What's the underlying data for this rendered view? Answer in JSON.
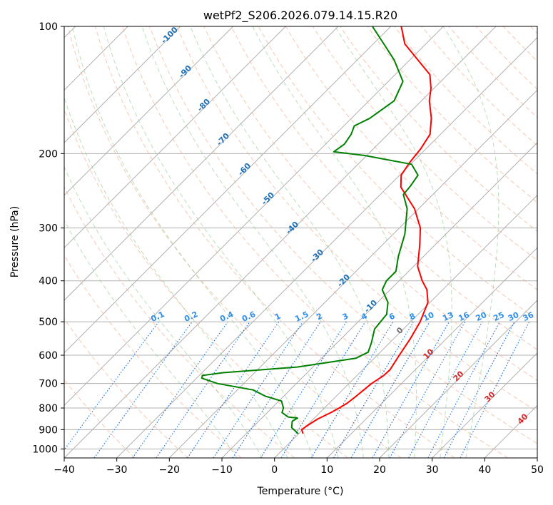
{
  "chart_data": {
    "type": "line",
    "title": "wetPf2_S206.2026.079.14.15.R20",
    "xlabel": "Temperature (°C)",
    "ylabel": "Pressure (hPa)",
    "xlim": [
      -40,
      50
    ],
    "ylim": [
      1050,
      100
    ],
    "y_scale": "log",
    "skew": "skew-T",
    "grid": true,
    "xticks": [
      -40,
      -30,
      -20,
      -10,
      0,
      10,
      20,
      30,
      40,
      50
    ],
    "xtick_labels": [
      "−40",
      "−30",
      "−20",
      "−10",
      "0",
      "10",
      "20",
      "30",
      "40",
      "50"
    ],
    "yticks": [
      1000,
      900,
      800,
      700,
      600,
      500,
      400,
      300,
      200,
      100
    ],
    "ytick_labels": [
      "1000",
      "900",
      "800",
      "700",
      "600",
      "500",
      "400",
      "300",
      "200",
      "100"
    ],
    "series": [
      {
        "color": "#ff0000",
        "points": [
          [
            920,
            0.8
          ],
          [
            900,
            -0.2
          ],
          [
            880,
            0.1
          ],
          [
            850,
            0.8
          ],
          [
            820,
            2.1
          ],
          [
            800,
            2.8
          ],
          [
            780,
            3.4
          ],
          [
            750,
            3.8
          ],
          [
            700,
            4.3
          ],
          [
            670,
            5.1
          ],
          [
            650,
            5.2
          ],
          [
            600,
            4.2
          ],
          [
            550,
            3.2
          ],
          [
            500,
            1.8
          ],
          [
            450,
            -0.4
          ],
          [
            420,
            -3.0
          ],
          [
            400,
            -5.6
          ],
          [
            370,
            -9.2
          ],
          [
            330,
            -12.8
          ],
          [
            300,
            -16.0
          ],
          [
            270,
            -20.8
          ],
          [
            240,
            -27.5
          ],
          [
            225,
            -29.7
          ],
          [
            210,
            -30.5
          ],
          [
            195,
            -31.0
          ],
          [
            180,
            -32.0
          ],
          [
            165,
            -34.8
          ],
          [
            150,
            -38.5
          ],
          [
            140,
            -40.6
          ],
          [
            130,
            -43.4
          ],
          [
            120,
            -48.5
          ],
          [
            110,
            -54.0
          ],
          [
            100,
            -58.0
          ]
        ]
      },
      {
        "color": "#008000",
        "points": [
          [
            920,
            -0.1
          ],
          [
            890,
            -2.5
          ],
          [
            860,
            -3.6
          ],
          [
            845,
            -3.2
          ],
          [
            840,
            -5.2
          ],
          [
            820,
            -7.2
          ],
          [
            800,
            -7.8
          ],
          [
            770,
            -9.5
          ],
          [
            750,
            -13.5
          ],
          [
            725,
            -17.0
          ],
          [
            700,
            -25.0
          ],
          [
            680,
            -29.0
          ],
          [
            670,
            -29.4
          ],
          [
            660,
            -26.0
          ],
          [
            640,
            -13.0
          ],
          [
            610,
            -3.5
          ],
          [
            590,
            -2.3
          ],
          [
            560,
            -3.5
          ],
          [
            520,
            -5.5
          ],
          [
            480,
            -6.0
          ],
          [
            450,
            -8.0
          ],
          [
            420,
            -11.5
          ],
          [
            400,
            -12.4
          ],
          [
            380,
            -12.4
          ],
          [
            350,
            -14.8
          ],
          [
            310,
            -17.8
          ],
          [
            270,
            -22.2
          ],
          [
            250,
            -25.6
          ],
          [
            238,
            -25.9
          ],
          [
            225,
            -26.5
          ],
          [
            212,
            -29.8
          ],
          [
            202,
            -40.5
          ],
          [
            198,
            -47.0
          ],
          [
            190,
            -46.4
          ],
          [
            180,
            -47.0
          ],
          [
            172,
            -48.0
          ],
          [
            165,
            -46.5
          ],
          [
            150,
            -45.2
          ],
          [
            135,
            -47.2
          ],
          [
            120,
            -53.0
          ],
          [
            110,
            -58.0
          ],
          [
            100,
            -63.5
          ]
        ]
      }
    ],
    "dry_adiabat_labels": [
      "-100",
      "-90",
      "-80",
      "-70",
      "-60",
      "-50",
      "-40",
      "-30",
      "-20",
      "-10",
      "0",
      "10",
      "20",
      "30",
      "40"
    ],
    "mixing_ratio_labels": [
      "0.1",
      "0.2",
      "0.4",
      "0.6",
      "1",
      "1.5",
      "2",
      "3",
      "4",
      "6",
      "8",
      "10",
      "13",
      "16",
      "20",
      "25",
      "30",
      "36"
    ]
  }
}
